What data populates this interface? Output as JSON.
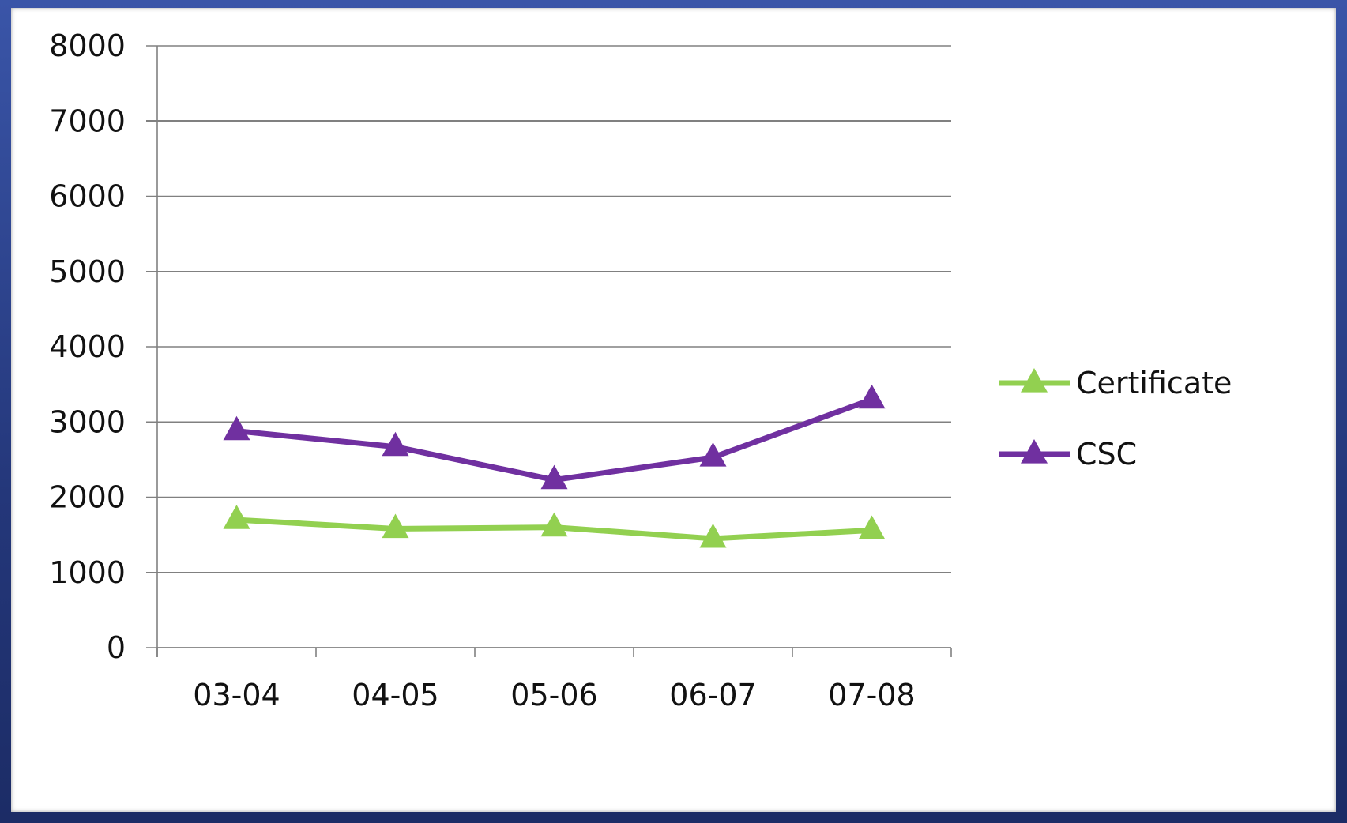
{
  "chart_data": {
    "type": "line",
    "categories": [
      "03-04",
      "04-05",
      "05-06",
      "06-07",
      "07-08"
    ],
    "series": [
      {
        "name": "Certificate",
        "values": [
          1700,
          1580,
          1600,
          1450,
          1560
        ],
        "color": "#92d050",
        "marker": "triangle"
      },
      {
        "name": "CSC",
        "values": [
          2880,
          2670,
          2230,
          2530,
          3300
        ],
        "color": "#7030a0",
        "marker": "triangle"
      }
    ],
    "yticks": [
      "0",
      "1000",
      "2000",
      "3000",
      "4000",
      "5000",
      "6000",
      "7000",
      "8000"
    ],
    "ylim": [
      0,
      8000
    ],
    "grid": true,
    "legend_position": "right",
    "colors": {
      "frame": "#2b3f8a",
      "panel": "#ffffff",
      "gridline": "#808080"
    }
  }
}
